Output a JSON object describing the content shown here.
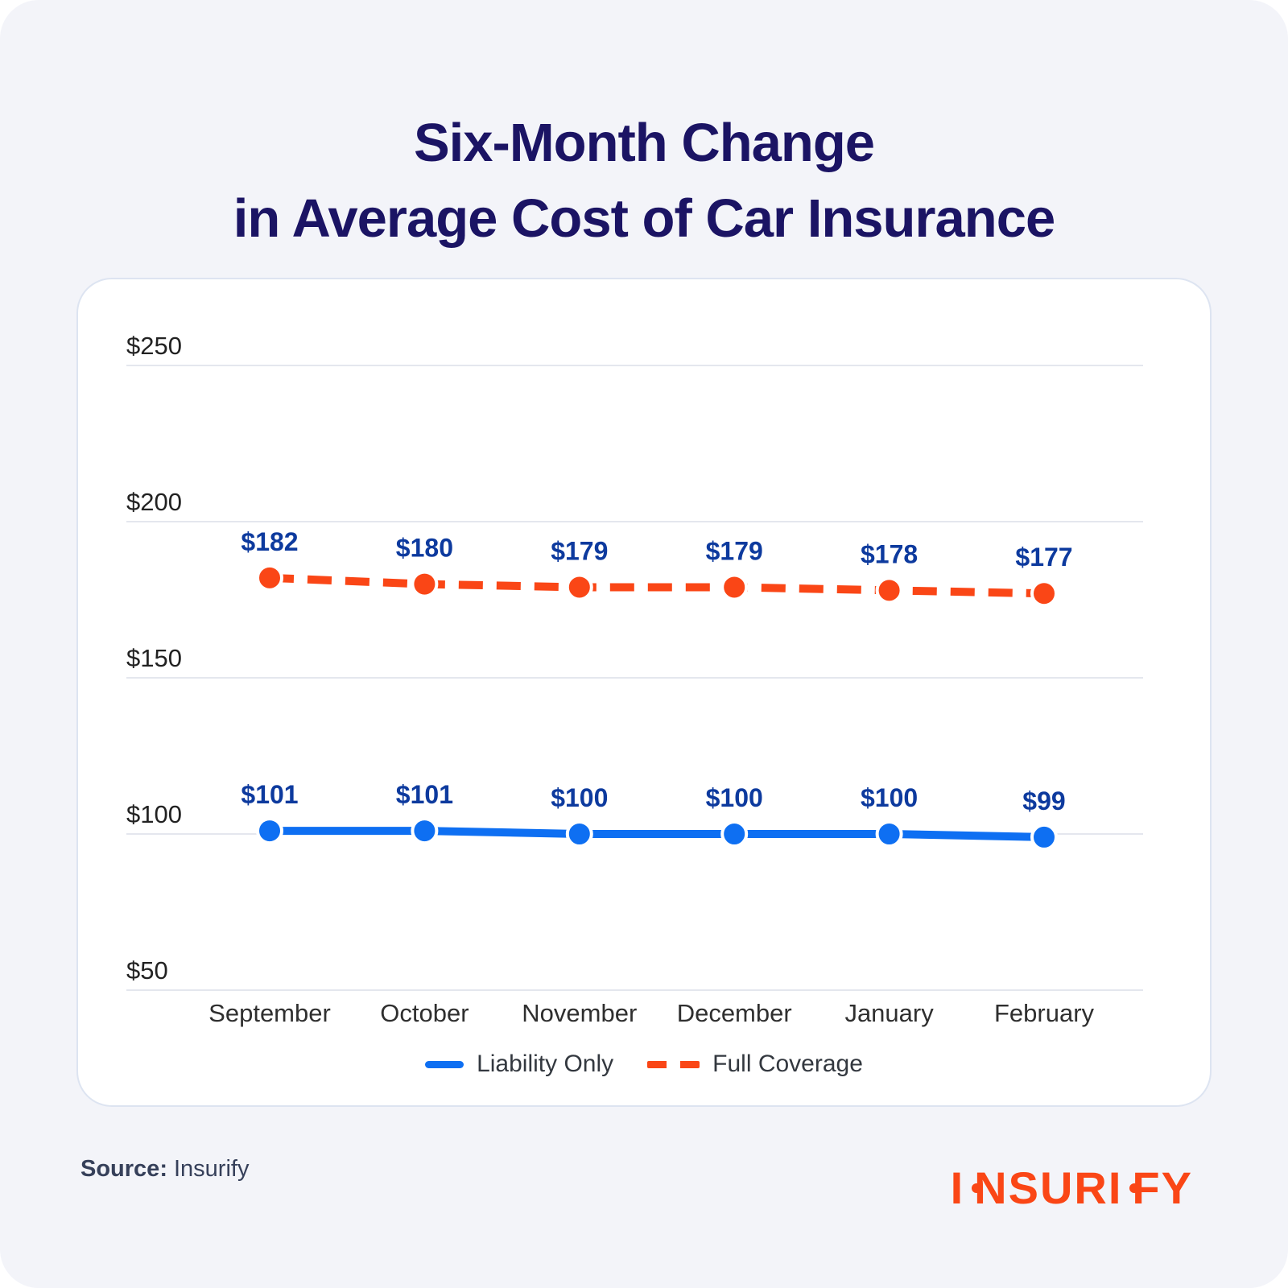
{
  "title": {
    "line1": "Six-Month Change",
    "line2": "in Average Cost of Car Insurance",
    "color": "#1b1464"
  },
  "chart_data": {
    "type": "line",
    "title": "Six-Month Change in Average Cost of Car Insurance",
    "categories": [
      "September",
      "October",
      "November",
      "December",
      "January",
      "February"
    ],
    "series": [
      {
        "name": "Liability Only",
        "values": [
          101,
          101,
          100,
          100,
          100,
          99
        ],
        "color": "#0e6ff2",
        "dashed": false
      },
      {
        "name": "Full Coverage",
        "values": [
          182,
          180,
          179,
          179,
          178,
          177
        ],
        "color": "#fa4616",
        "dashed": true
      }
    ],
    "ylim": [
      50,
      250
    ],
    "yticks": [
      50,
      100,
      150,
      200,
      250
    ],
    "value_prefix": "$",
    "grid": true,
    "legend_position": "bottom",
    "data_label_color": "#0d3a9e",
    "axis_text_color": "#222222",
    "month_text_color": "#2f2f2f",
    "grid_color": "#e4e7ee"
  },
  "legend": {
    "items": [
      {
        "label": "Liability Only",
        "color": "#0e6ff2",
        "dashed": false
      },
      {
        "label": "Full Coverage",
        "color": "#fa4616",
        "dashed": true
      }
    ]
  },
  "footer": {
    "source_label": "Source:",
    "source_value": "Insurify",
    "logo_text": "insurify",
    "logo_color": "#fa4616"
  }
}
